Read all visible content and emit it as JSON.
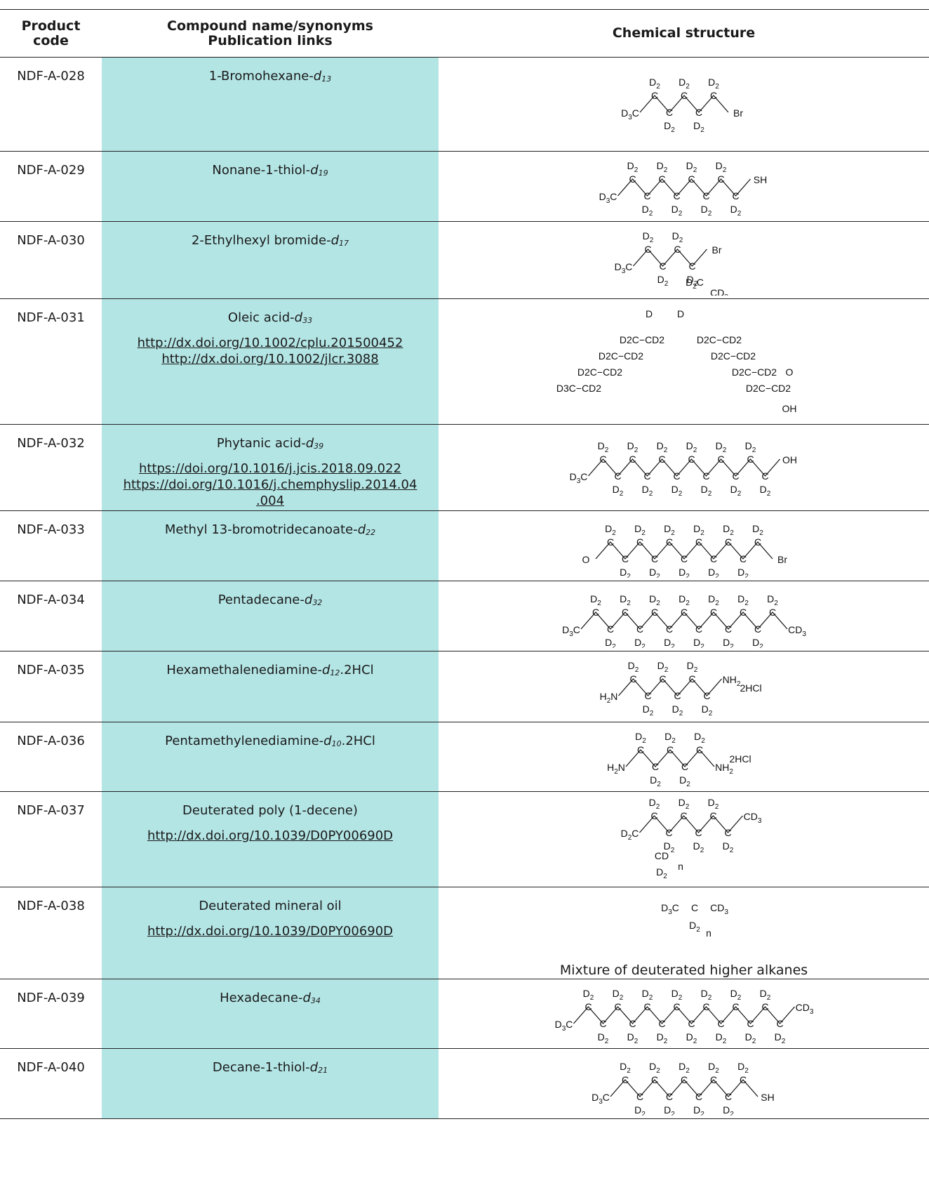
{
  "header": {
    "col1": "Product\ncode",
    "col1_a": "Product",
    "col1_b": "code",
    "col2_a": "Compound name/synonyms",
    "col2_b": "Publication links",
    "col3": "Chemical structure"
  },
  "rows": [
    {
      "code": "NDF-A-028",
      "name": "1-Bromohexane-",
      "d": "13",
      "suffix": "",
      "links": []
    },
    {
      "code": "NDF-A-029",
      "name": "Nonane-1-thiol-",
      "d": "19",
      "suffix": "",
      "links": []
    },
    {
      "code": "NDF-A-030",
      "name": "2-Ethylhexyl bromide-",
      "d": "17",
      "suffix": "",
      "links": []
    },
    {
      "code": "NDF-A-031",
      "name": "Oleic acid-",
      "d": "33",
      "suffix": "",
      "links": [
        "http://dx.doi.org/10.1002/cplu.201500452",
        "http://dx.doi.org/10.1002/jlcr.3088"
      ]
    },
    {
      "code": "NDF-A-032",
      "name": "Phytanic acid-",
      "d": "39",
      "suffix": "",
      "links": [
        "https://doi.org/10.1016/j.jcis.2018.09.022",
        "https://doi.org/10.1016/j.chemphyslip.2014.04",
        ".004"
      ]
    },
    {
      "code": "NDF-A-033",
      "name": "Methyl 13-bromotridecanoate-",
      "d": "22",
      "suffix": "",
      "links": []
    },
    {
      "code": "NDF-A-034",
      "name": "Pentadecane-",
      "d": "32",
      "suffix": "",
      "links": []
    },
    {
      "code": "NDF-A-035",
      "name": "Hexamethalenediamine-",
      "d": "12",
      "suffix": ".2HCl",
      "links": []
    },
    {
      "code": "NDF-A-036",
      "name": "Pentamethylenediamine-",
      "d": "10",
      "suffix": ".2HCl",
      "links": []
    },
    {
      "code": "NDF-A-037",
      "name": "Deuterated poly (1-decene)",
      "d": "",
      "suffix": "",
      "links": [
        "http://dx.doi.org/10.1039/D0PY00690D"
      ]
    },
    {
      "code": "NDF-A-038",
      "name": "Deuterated mineral oil",
      "d": "",
      "suffix": "",
      "links": [
        "http://dx.doi.org/10.1039/D0PY00690D"
      ],
      "note": "Mixture of deuterated higher alkanes"
    },
    {
      "code": "NDF-A-039",
      "name": "Hexadecane-",
      "d": "34",
      "suffix": "",
      "links": []
    },
    {
      "code": "NDF-A-040",
      "name": "Decane-1-thiol-",
      "d": "21",
      "suffix": "",
      "links": []
    }
  ],
  "colors": {
    "name_column_bg": "#b4e5e5",
    "rule": "#222222"
  },
  "structure_labels": {
    "d2": "D",
    "d3c": "D",
    "c": "C",
    "br": "Br",
    "sh": "SH",
    "oh": "OH",
    "o": "O",
    "n": "n",
    "hcl": "2HCl",
    "nh2": "NH",
    "h2n": "H",
    "cd3": "CD",
    "cd": "CD",
    "dlabel": "D",
    "chain_d2c_cd2": "D2C−CD2",
    "chain_d3c_cd2": "D3C−CD2"
  }
}
